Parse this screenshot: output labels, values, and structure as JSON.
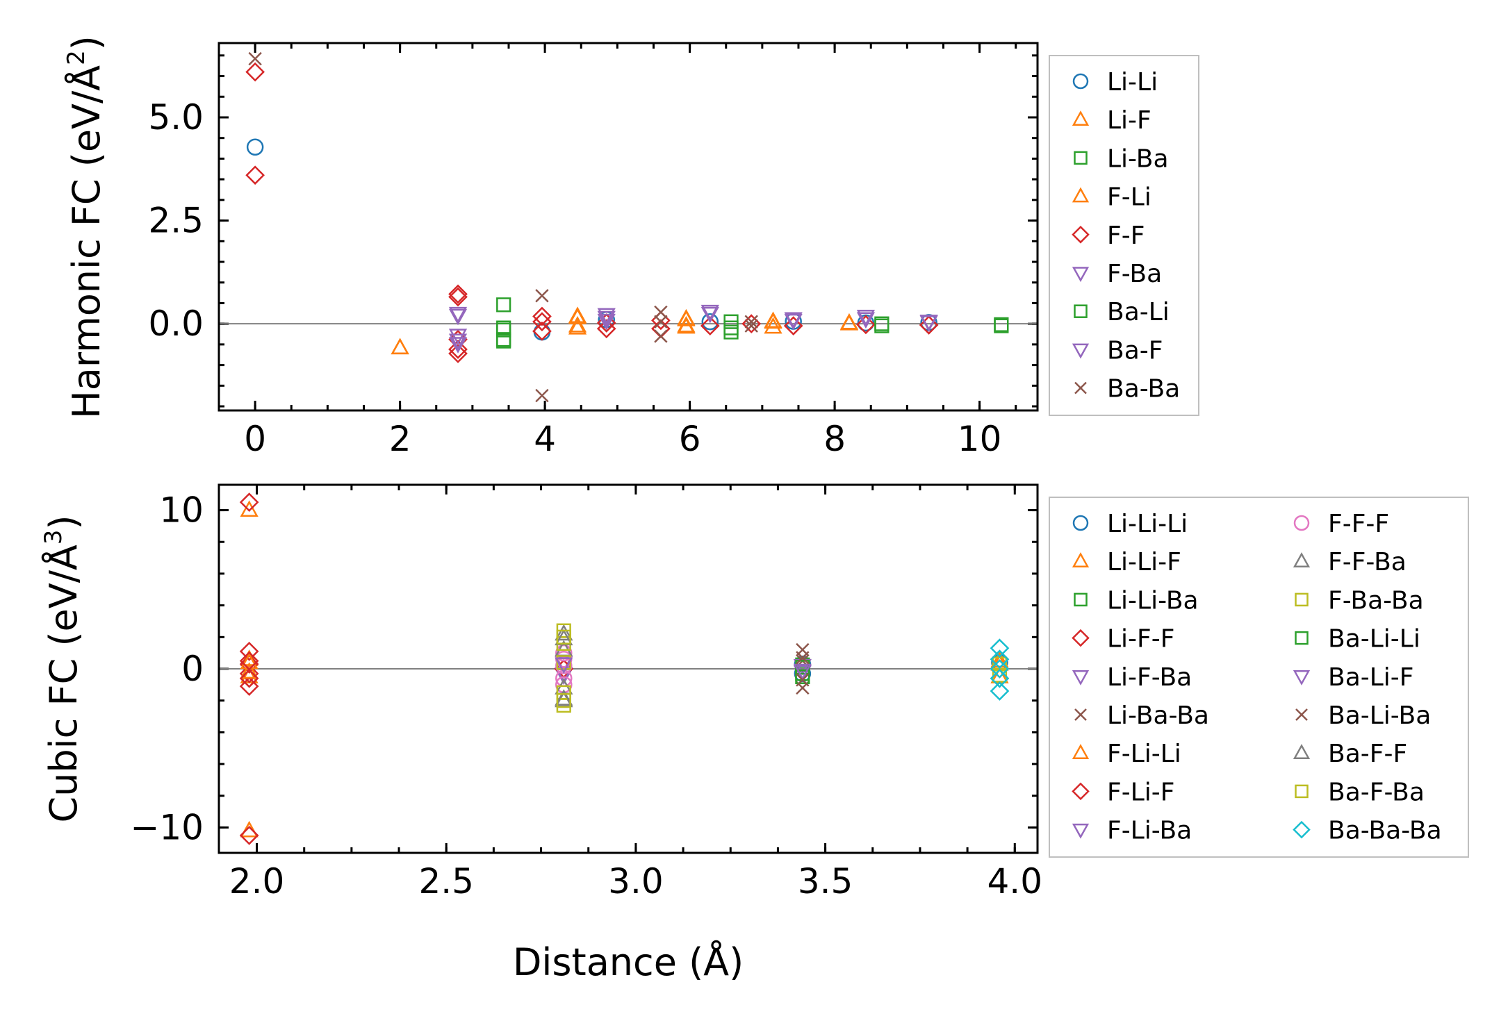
{
  "chart_data": [
    {
      "type": "scatter",
      "id": "harmonic",
      "title": "",
      "xlabel": "",
      "ylabel_main": "Harmonic FC (eV/Å",
      "ylabel_sup": "2",
      "ylabel_close": ")",
      "xlim": [
        -0.5,
        10.8
      ],
      "ylim": [
        -2.1,
        6.8
      ],
      "xticks": [
        0,
        2,
        4,
        6,
        8,
        10
      ],
      "xtick_labels": [
        "0",
        "2",
        "4",
        "6",
        "8",
        "10"
      ],
      "yticks": [
        0.0,
        2.5,
        5.0
      ],
      "ytick_labels": [
        "0.0",
        "2.5",
        "5.0"
      ],
      "zero_line": true,
      "grid": false,
      "legend_position": "outside-right",
      "series": [
        {
          "name": "Li-Li",
          "marker": "circle",
          "color": "#1f77b4",
          "x": [
            0,
            3.96,
            4.85,
            6.28,
            7.43,
            8.43,
            9.3
          ],
          "y": [
            4.28,
            -0.2,
            0.1,
            0.05,
            0.06,
            0.02,
            0.03
          ]
        },
        {
          "name": "Li-F",
          "marker": "triangle-up",
          "color": "#ff7f0e",
          "x": [
            2.0,
            4.45,
            4.45,
            5.95,
            5.95,
            7.15,
            7.15,
            8.2
          ],
          "y": [
            -0.58,
            0.18,
            -0.1,
            0.12,
            -0.05,
            0.06,
            -0.08,
            0.02
          ]
        },
        {
          "name": "Li-Ba",
          "marker": "square",
          "color": "#2ca02c",
          "x": [
            3.43,
            3.43,
            3.43,
            6.57,
            6.57,
            8.65,
            10.3
          ],
          "y": [
            0.46,
            -0.1,
            -0.42,
            0.05,
            -0.2,
            -0.05,
            -0.05
          ]
        },
        {
          "name": "F-Li",
          "marker": "triangle-up",
          "color": "#ff7f0e",
          "x": [
            2.0,
            4.45,
            4.45,
            5.95,
            5.95,
            7.15,
            8.2
          ],
          "y": [
            -0.58,
            0.15,
            -0.05,
            0.1,
            -0.08,
            0.04,
            0.0
          ]
        },
        {
          "name": "F-F",
          "marker": "diamond",
          "color": "#d62728",
          "x": [
            0,
            0,
            2.8,
            2.8,
            2.8,
            2.8,
            2.8,
            3.96,
            3.96,
            3.96,
            4.85,
            4.85,
            5.6,
            5.6,
            6.28,
            6.85,
            7.43,
            8.43,
            9.3
          ],
          "y": [
            6.1,
            3.6,
            0.72,
            0.65,
            -0.38,
            -0.62,
            -0.72,
            0.18,
            0.05,
            -0.18,
            0.02,
            -0.12,
            0.08,
            -0.12,
            -0.05,
            0.0,
            -0.05,
            -0.02,
            -0.03
          ]
        },
        {
          "name": "F-Ba",
          "marker": "triangle-down",
          "color": "#9467bd",
          "x": [
            2.8,
            2.8,
            2.8,
            4.85,
            4.85,
            6.28,
            7.43,
            8.43,
            9.3
          ],
          "y": [
            0.25,
            -0.28,
            -0.48,
            0.22,
            0.08,
            0.3,
            0.12,
            0.18,
            0.06
          ]
        },
        {
          "name": "Ba-Li",
          "marker": "square",
          "color": "#2ca02c",
          "x": [
            3.43,
            3.43,
            6.57,
            8.65,
            10.3
          ],
          "y": [
            -0.15,
            -0.38,
            -0.1,
            0.0,
            -0.02
          ]
        },
        {
          "name": "Ba-F",
          "marker": "triangle-down",
          "color": "#9467bd",
          "x": [
            2.8,
            2.8,
            4.85,
            6.28,
            7.43,
            8.43,
            9.3
          ],
          "y": [
            0.2,
            -0.4,
            0.15,
            0.25,
            0.08,
            0.12,
            0.04
          ]
        },
        {
          "name": "Ba-Ba",
          "marker": "x",
          "color": "#8c564b",
          "x": [
            0,
            3.96,
            3.96,
            5.6,
            5.6,
            5.6,
            6.85,
            6.85
          ],
          "y": [
            6.42,
            0.68,
            -1.74,
            0.28,
            0.05,
            -0.3,
            0.05,
            -0.05
          ]
        }
      ]
    },
    {
      "type": "scatter",
      "id": "cubic",
      "title": "",
      "xlabel": "Distance (Å)",
      "ylabel_main": "Cubic FC (eV/Å",
      "ylabel_sup": "3",
      "ylabel_close": ")",
      "xlim": [
        1.9,
        4.06
      ],
      "ylim": [
        -11.6,
        11.6
      ],
      "xticks": [
        2.0,
        2.5,
        3.0,
        3.5,
        4.0
      ],
      "xtick_labels": [
        "2.0",
        "2.5",
        "3.0",
        "3.5",
        "4.0"
      ],
      "yticks": [
        -10,
        0,
        10
      ],
      "ytick_labels": [
        "−10",
        "0",
        "10"
      ],
      "zero_line": true,
      "grid": false,
      "legend_position": "outside-right",
      "series": [
        {
          "name": "Li-Li-Li",
          "marker": "circle",
          "color": "#1f77b4",
          "x": [
            3.44,
            3.44,
            3.96
          ],
          "y": [
            0.3,
            -0.3,
            0.4
          ]
        },
        {
          "name": "Li-Li-F",
          "marker": "triangle-up",
          "color": "#ff7f0e",
          "x": [
            1.98,
            1.98,
            1.98,
            1.98,
            3.96,
            3.96
          ],
          "y": [
            10.0,
            -10.2,
            0.6,
            -0.5,
            0.5,
            -0.5
          ]
        },
        {
          "name": "Li-Li-Ba",
          "marker": "square",
          "color": "#2ca02c",
          "x": [
            3.44,
            3.44
          ],
          "y": [
            0.25,
            -0.3
          ]
        },
        {
          "name": "Li-F-F",
          "marker": "diamond",
          "color": "#d62728",
          "x": [
            1.98,
            1.98,
            1.98,
            1.98,
            1.98,
            1.98,
            2.81
          ],
          "y": [
            10.5,
            -10.5,
            1.1,
            0.3,
            -0.3,
            -1.1,
            0.0
          ]
        },
        {
          "name": "Li-F-Ba",
          "marker": "triangle-down",
          "color": "#9467bd",
          "x": [
            2.81,
            2.81,
            3.44
          ],
          "y": [
            0.4,
            -0.4,
            0.2
          ]
        },
        {
          "name": "Li-Ba-Ba",
          "marker": "x",
          "color": "#8c564b",
          "x": [
            3.44,
            3.44,
            3.44
          ],
          "y": [
            1.2,
            0.5,
            -1.2
          ]
        },
        {
          "name": "F-Li-Li",
          "marker": "triangle-up",
          "color": "#ff7f0e",
          "x": [
            1.98,
            1.98,
            3.96
          ],
          "y": [
            0.4,
            -0.2,
            0.3
          ]
        },
        {
          "name": "F-Li-F",
          "marker": "diamond",
          "color": "#d62728",
          "x": [
            1.98,
            1.98,
            2.81
          ],
          "y": [
            0.5,
            -0.6,
            0.0
          ]
        },
        {
          "name": "F-Li-Ba",
          "marker": "triangle-down",
          "color": "#9467bd",
          "x": [
            2.81,
            3.44
          ],
          "y": [
            -0.3,
            -0.2
          ]
        },
        {
          "name": "F-F-F",
          "marker": "circle",
          "color": "#e377c2",
          "x": [
            2.81,
            2.81,
            2.81,
            2.81,
            2.81
          ],
          "y": [
            1.0,
            0.6,
            0.2,
            -0.6,
            -1.0
          ]
        },
        {
          "name": "F-F-Ba",
          "marker": "triangle-up",
          "color": "#7f7f7f",
          "x": [
            2.81,
            2.81,
            2.81,
            2.81
          ],
          "y": [
            2.2,
            1.2,
            -1.2,
            -2.0
          ]
        },
        {
          "name": "F-Ba-Ba",
          "marker": "square",
          "color": "#bcbd22",
          "x": [
            2.81,
            2.81,
            2.81,
            2.81,
            2.81
          ],
          "y": [
            2.4,
            1.6,
            0.4,
            -1.5,
            -2.3
          ]
        },
        {
          "name": "Ba-Li-Li",
          "marker": "square",
          "color": "#2ca02c",
          "x": [
            3.44,
            3.44
          ],
          "y": [
            0.1,
            -0.5
          ]
        },
        {
          "name": "Ba-Li-F",
          "marker": "triangle-down",
          "color": "#9467bd",
          "x": [
            2.81,
            3.44
          ],
          "y": [
            0.3,
            -0.1
          ]
        },
        {
          "name": "Ba-Li-Ba",
          "marker": "x",
          "color": "#8c564b",
          "x": [
            3.44,
            3.44
          ],
          "y": [
            0.7,
            -0.7
          ]
        },
        {
          "name": "Ba-F-F",
          "marker": "triangle-up",
          "color": "#7f7f7f",
          "x": [
            2.81,
            2.81
          ],
          "y": [
            1.9,
            -1.9
          ]
        },
        {
          "name": "Ba-F-Ba",
          "marker": "square",
          "color": "#bcbd22",
          "x": [
            2.81,
            2.81,
            3.96,
            3.96
          ],
          "y": [
            2.0,
            -2.0,
            0.3,
            -0.4
          ]
        },
        {
          "name": "Ba-Ba-Ba",
          "marker": "diamond",
          "color": "#17becf",
          "x": [
            3.96,
            3.96,
            3.96,
            3.96,
            3.96
          ],
          "y": [
            1.3,
            0.6,
            0.0,
            -0.6,
            -1.4
          ]
        }
      ]
    }
  ]
}
